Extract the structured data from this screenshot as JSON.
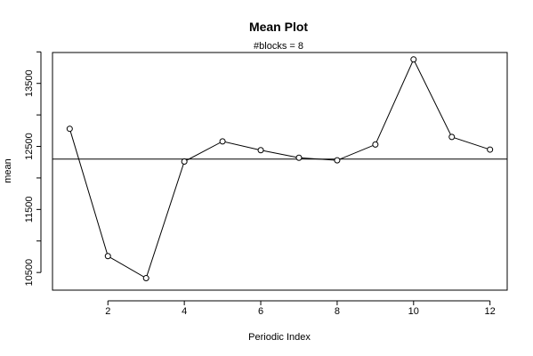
{
  "chart_data": {
    "type": "line",
    "title": "Mean Plot",
    "subtitle": "#blocks =  8",
    "xlabel": "Periodic Index",
    "ylabel": "mean",
    "x": [
      1,
      2,
      3,
      4,
      5,
      6,
      7,
      8,
      9,
      10,
      11,
      12
    ],
    "series": [
      {
        "values": [
          12780,
          10760,
          10410,
          12260,
          12580,
          12440,
          12320,
          12280,
          12530,
          13880,
          12650,
          12450
        ]
      }
    ],
    "reference_line": 12300,
    "x_ticks": [
      2,
      4,
      6,
      8,
      10,
      12
    ],
    "y_ticks": [
      10500,
      11000,
      11500,
      12000,
      12500,
      13000,
      13500,
      14000
    ],
    "y_tick_labels": [
      10500,
      11500,
      12500,
      13500
    ],
    "xlim": [
      0.55,
      12.45
    ],
    "ylim": [
      10220,
      13990
    ],
    "colors": {
      "line": "#000000",
      "point_fill": "#ffffff"
    }
  }
}
